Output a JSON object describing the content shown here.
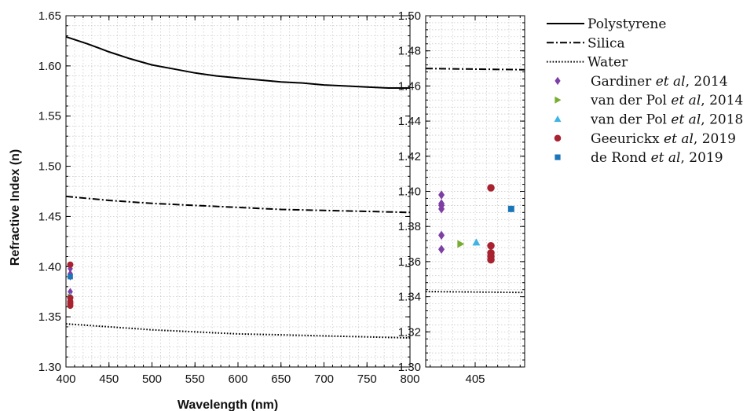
{
  "chart_data": {
    "type": "line",
    "xlabel": "Wavelength (nm)",
    "ylabel": "Refractive Index (n)",
    "grid": true,
    "legend_position": "right",
    "main_panel": {
      "xlim": [
        400,
        800
      ],
      "ylim": [
        1.3,
        1.65
      ],
      "xticks": [
        "400",
        "450",
        "500",
        "550",
        "600",
        "650",
        "700",
        "750",
        "800"
      ],
      "yticks": [
        "1.30",
        "1.35",
        "1.40",
        "1.45",
        "1.50",
        "1.55",
        "1.60",
        "1.65"
      ]
    },
    "zoom_panel": {
      "xlim": [
        400.6,
        409.4
      ],
      "ylim": [
        1.3,
        1.5
      ],
      "xticks": [
        "405"
      ],
      "yticks": [
        "1.30",
        "1.32",
        "1.34",
        "1.36",
        "1.38",
        "1.40",
        "1.42",
        "1.44",
        "1.46",
        "1.48",
        "1.50"
      ]
    },
    "series": [
      {
        "name": "Polystyrene",
        "kind": "line",
        "dash": "solid",
        "x": [
          400,
          425,
          450,
          475,
          500,
          525,
          550,
          575,
          600,
          625,
          650,
          675,
          700,
          725,
          750,
          775,
          800
        ],
        "y": [
          1.629,
          1.622,
          1.614,
          1.607,
          1.601,
          1.597,
          1.593,
          1.59,
          1.588,
          1.586,
          1.584,
          1.583,
          1.581,
          1.58,
          1.579,
          1.578,
          1.578
        ]
      },
      {
        "name": "Silica",
        "kind": "line",
        "dash": "dashdot",
        "x": [
          400,
          450,
          500,
          550,
          600,
          650,
          700,
          750,
          800
        ],
        "y": [
          1.47,
          1.466,
          1.463,
          1.461,
          1.459,
          1.457,
          1.456,
          1.455,
          1.454
        ]
      },
      {
        "name": "Water",
        "kind": "line",
        "dash": "dotted",
        "x": [
          400,
          450,
          500,
          550,
          600,
          650,
          700,
          750,
          800
        ],
        "y": [
          1.343,
          1.34,
          1.337,
          1.335,
          1.333,
          1.332,
          1.331,
          1.33,
          1.329
        ]
      },
      {
        "name": "Gardiner et al, 2014",
        "kind": "scatter",
        "marker": "diamond",
        "color": "#7e3fa4",
        "x": [
          402,
          402,
          402,
          402,
          402,
          402
        ],
        "y": [
          1.398,
          1.393,
          1.39,
          1.375,
          1.367,
          1.392
        ]
      },
      {
        "name": "van der Pol et al, 2014",
        "kind": "scatter",
        "marker": "triangle-right",
        "color": "#77ac2f",
        "x": [
          403.7
        ],
        "y": [
          1.37
        ]
      },
      {
        "name": "van der Pol et al, 2018",
        "kind": "scatter",
        "marker": "triangle-up",
        "color": "#3db4e2",
        "x": [
          405.1
        ],
        "y": [
          1.371
        ]
      },
      {
        "name": "Geeurickx et al, 2019",
        "kind": "scatter",
        "marker": "circle",
        "color": "#a8222f",
        "x": [
          406.4,
          406.4,
          406.4,
          406.4,
          406.4
        ],
        "y": [
          1.402,
          1.369,
          1.365,
          1.363,
          1.361
        ]
      },
      {
        "name": "de Rond et al, 2019",
        "kind": "scatter",
        "marker": "square",
        "color": "#1b76b9",
        "x": [
          408.2
        ],
        "y": [
          1.39
        ]
      }
    ],
    "legend": [
      {
        "italic": false,
        "parts": [
          "Polystyrene"
        ]
      },
      {
        "italic": false,
        "parts": [
          "Silica"
        ]
      },
      {
        "italic": false,
        "parts": [
          "Water"
        ]
      },
      {
        "italic": true,
        "parts": [
          "Gardiner ",
          "et al",
          ", 2014"
        ]
      },
      {
        "italic": true,
        "parts": [
          "van der Pol ",
          "et al",
          ", 2014"
        ]
      },
      {
        "italic": true,
        "parts": [
          "van der Pol ",
          "et al",
          ", 2018"
        ]
      },
      {
        "italic": true,
        "parts": [
          "Geeurickx ",
          "et al",
          ", 2019"
        ]
      },
      {
        "italic": true,
        "parts": [
          "de Rond ",
          "et al",
          ", 2019"
        ]
      }
    ]
  }
}
